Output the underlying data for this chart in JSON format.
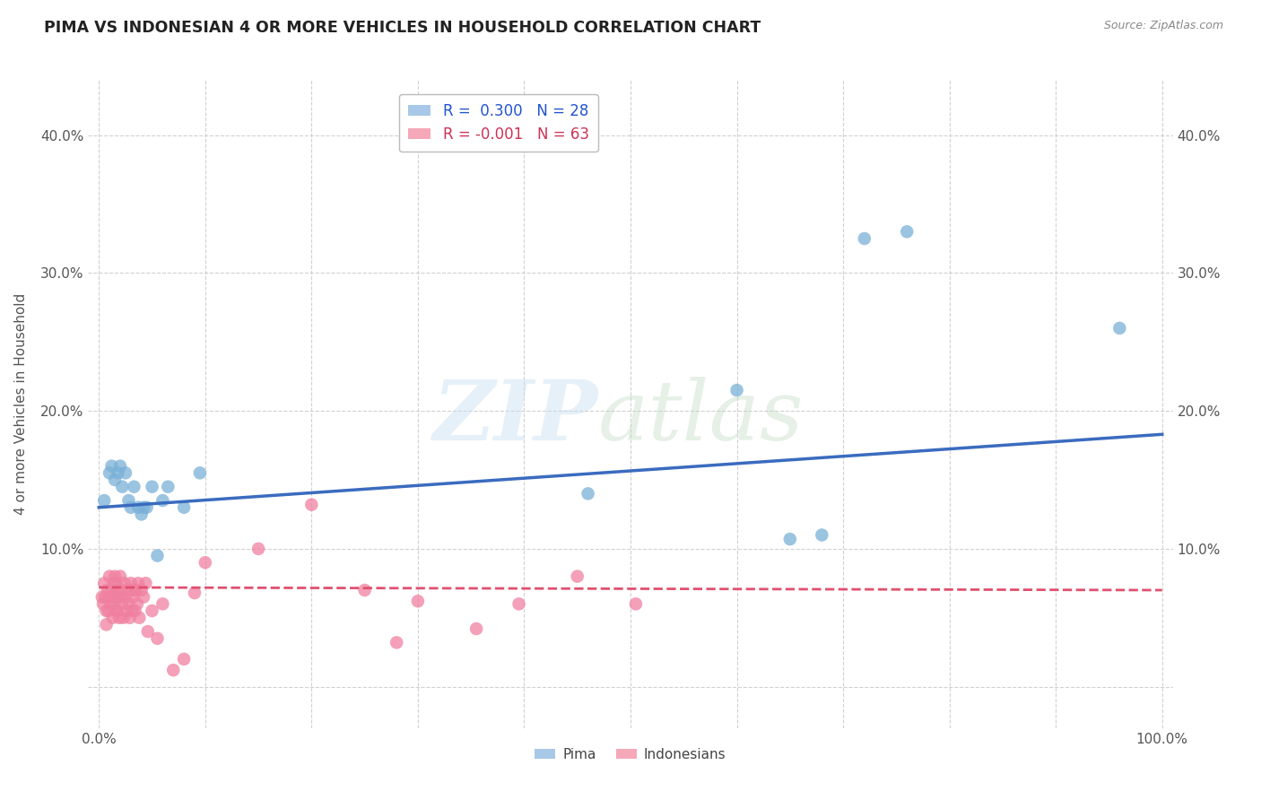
{
  "title": "PIMA VS INDONESIAN 4 OR MORE VEHICLES IN HOUSEHOLD CORRELATION CHART",
  "source": "Source: ZipAtlas.com",
  "ylabel": "4 or more Vehicles in Household",
  "xlim": [
    -0.01,
    1.01
  ],
  "ylim": [
    -0.03,
    0.44
  ],
  "xtick_positions": [
    0.0,
    0.1,
    0.2,
    0.3,
    0.4,
    0.5,
    0.6,
    0.7,
    0.8,
    0.9,
    1.0
  ],
  "xtick_labels": [
    "0.0%",
    "",
    "",
    "",
    "",
    "",
    "",
    "",
    "",
    "",
    "100.0%"
  ],
  "ytick_positions": [
    0.0,
    0.1,
    0.2,
    0.3,
    0.4
  ],
  "ytick_labels": [
    "",
    "10.0%",
    "20.0%",
    "30.0%",
    "40.0%"
  ],
  "pima_R": 0.3,
  "pima_N": 28,
  "indonesian_R": -0.001,
  "indonesian_N": 63,
  "pima_scatter_color": "#7ab0d8",
  "indonesian_scatter_color": "#f080a0",
  "legend_pima_color": "#a8c8e8",
  "legend_indonesian_color": "#f4a8b8",
  "pima_line_color": "#3a6bbf",
  "indonesian_line_color": "#e05070",
  "grid_color": "#cccccc",
  "background_color": "#ffffff",
  "pima_line_x0": 0.0,
  "pima_line_y0": 0.13,
  "pima_line_x1": 1.0,
  "pima_line_y1": 0.183,
  "indo_line_x0": 0.0,
  "indo_line_y0": 0.072,
  "indo_line_x1": 1.0,
  "indo_line_y1": 0.07,
  "pima_x": [
    0.005,
    0.01,
    0.012,
    0.015,
    0.018,
    0.02,
    0.022,
    0.025,
    0.028,
    0.03,
    0.033,
    0.037,
    0.04,
    0.042,
    0.045,
    0.05,
    0.055,
    0.06,
    0.065,
    0.08,
    0.095,
    0.46,
    0.6,
    0.65,
    0.68,
    0.72,
    0.76,
    0.96
  ],
  "pima_y": [
    0.135,
    0.155,
    0.16,
    0.15,
    0.155,
    0.16,
    0.145,
    0.155,
    0.135,
    0.13,
    0.145,
    0.13,
    0.125,
    0.13,
    0.13,
    0.145,
    0.095,
    0.135,
    0.145,
    0.13,
    0.155,
    0.14,
    0.215,
    0.107,
    0.11,
    0.325,
    0.33,
    0.26
  ],
  "indonesian_x": [
    0.003,
    0.004,
    0.005,
    0.006,
    0.007,
    0.007,
    0.008,
    0.009,
    0.01,
    0.01,
    0.011,
    0.012,
    0.013,
    0.014,
    0.014,
    0.015,
    0.015,
    0.016,
    0.016,
    0.017,
    0.018,
    0.018,
    0.019,
    0.02,
    0.02,
    0.021,
    0.022,
    0.023,
    0.024,
    0.025,
    0.026,
    0.027,
    0.028,
    0.029,
    0.03,
    0.031,
    0.032,
    0.033,
    0.034,
    0.035,
    0.036,
    0.037,
    0.038,
    0.04,
    0.042,
    0.044,
    0.046,
    0.05,
    0.055,
    0.06,
    0.07,
    0.08,
    0.09,
    0.1,
    0.15,
    0.2,
    0.25,
    0.28,
    0.3,
    0.355,
    0.395,
    0.45,
    0.505
  ],
  "indonesian_y": [
    0.065,
    0.06,
    0.075,
    0.065,
    0.055,
    0.045,
    0.07,
    0.055,
    0.08,
    0.065,
    0.06,
    0.07,
    0.05,
    0.075,
    0.065,
    0.06,
    0.08,
    0.055,
    0.075,
    0.055,
    0.07,
    0.065,
    0.05,
    0.08,
    0.065,
    0.07,
    0.06,
    0.05,
    0.075,
    0.065,
    0.055,
    0.07,
    0.06,
    0.05,
    0.075,
    0.055,
    0.065,
    0.07,
    0.055,
    0.07,
    0.06,
    0.075,
    0.05,
    0.07,
    0.065,
    0.075,
    0.04,
    0.055,
    0.035,
    0.06,
    0.012,
    0.02,
    0.068,
    0.09,
    0.1,
    0.132,
    0.07,
    0.032,
    0.062,
    0.042,
    0.06,
    0.08,
    0.06
  ]
}
